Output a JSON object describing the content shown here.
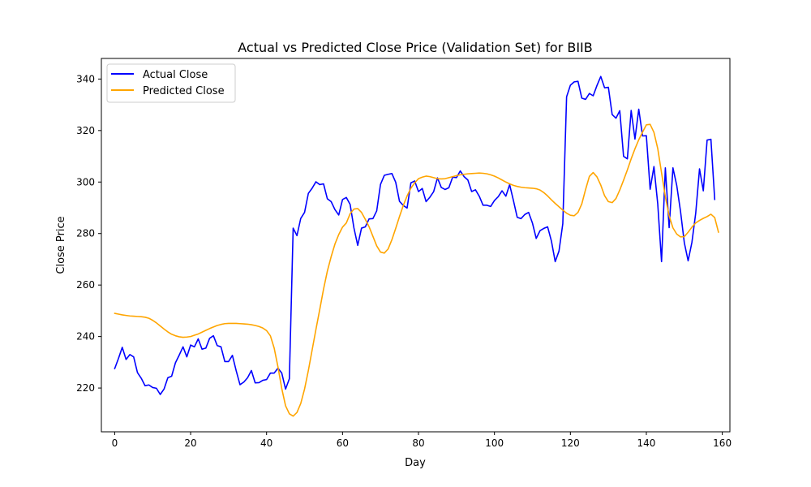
{
  "chart_data": {
    "type": "line",
    "title": "Actual vs Predicted Close Price (Validation Set) for BIIB",
    "xlabel": "Day",
    "ylabel": "Close Price",
    "xlim": [
      -3.5,
      162
    ],
    "ylim": [
      203,
      348
    ],
    "xticks": [
      0,
      20,
      40,
      60,
      80,
      100,
      120,
      140,
      160
    ],
    "yticks": [
      220,
      240,
      260,
      280,
      300,
      320,
      340
    ],
    "grid": false,
    "legend_position": "top-left",
    "series": [
      {
        "name": "Actual Close",
        "color": "#0000ff",
        "values": [
          227.5,
          231.5,
          235.8,
          231.1,
          233.0,
          232.1,
          226.0,
          223.8,
          220.9,
          221.2,
          220.2,
          219.9,
          217.5,
          219.6,
          224.0,
          224.6,
          229.8,
          232.8,
          236.0,
          232.1,
          236.7,
          236.0,
          239.1,
          235.1,
          235.5,
          239.3,
          240.3,
          236.5,
          236.0,
          230.3,
          230.3,
          232.7,
          226.7,
          221.3,
          222.3,
          224.0,
          226.8,
          222.0,
          222.1,
          223.0,
          223.3,
          225.8,
          225.8,
          227.7,
          225.8,
          219.6,
          223.6,
          282.1,
          279.2,
          285.9,
          288.2,
          295.6,
          297.6,
          300.1,
          299.0,
          299.3,
          293.5,
          292.4,
          289.3,
          287.2,
          293.2,
          294.0,
          291.3,
          282.2,
          275.4,
          282.1,
          282.6,
          285.7,
          285.8,
          288.8,
          299.1,
          302.6,
          303.0,
          303.3,
          299.9,
          292.5,
          290.9,
          289.9,
          299.7,
          300.4,
          296.3,
          297.5,
          292.4,
          294.1,
          296.3,
          301.6,
          297.9,
          297.1,
          297.8,
          301.9,
          301.7,
          304.3,
          302.1,
          300.8,
          296.3,
          297.0,
          294.5,
          291.0,
          291.0,
          290.5,
          292.8,
          294.3,
          296.6,
          294.5,
          299.0,
          292.8,
          286.3,
          285.8,
          287.4,
          288.2,
          284.1,
          278.1,
          281.1,
          282.0,
          282.6,
          277.1,
          269.1,
          273.2,
          283.8,
          333.1,
          337.6,
          338.9,
          339.1,
          332.6,
          332.1,
          334.4,
          333.5,
          337.5,
          341.0,
          336.6,
          336.8,
          326.2,
          324.8,
          327.7,
          310.0,
          309.0,
          327.8,
          316.7,
          328.3,
          317.9,
          318.0,
          297.2,
          306.0,
          291.5,
          269.1,
          305.5,
          282.3,
          305.5,
          298.7,
          288.6,
          276.4,
          269.4,
          276.6,
          287.9,
          305.1,
          296.6,
          316.3,
          316.6,
          293.2
        ]
      },
      {
        "name": "Predicted Close",
        "color": "#ffa500",
        "values": [
          249.0,
          248.7,
          248.4,
          248.2,
          248.0,
          247.9,
          247.8,
          247.7,
          247.5,
          247.1,
          246.3,
          245.3,
          244.1,
          242.9,
          241.8,
          240.9,
          240.3,
          239.9,
          239.7,
          239.8,
          240.0,
          240.5,
          241.0,
          241.7,
          242.4,
          243.1,
          243.7,
          244.3,
          244.7,
          245.0,
          245.1,
          245.1,
          245.1,
          245.0,
          244.9,
          244.8,
          244.6,
          244.3,
          243.9,
          243.3,
          242.3,
          240.3,
          235.5,
          228.2,
          219.8,
          213.1,
          210.0,
          209.1,
          210.5,
          214.0,
          219.6,
          226.8,
          234.8,
          242.8,
          250.5,
          258.4,
          265.4,
          271.0,
          275.9,
          279.6,
          282.5,
          284.1,
          287.7,
          289.5,
          289.7,
          288.2,
          285.5,
          282.6,
          278.9,
          275.2,
          272.8,
          272.4,
          274.0,
          277.6,
          282.0,
          286.6,
          290.9,
          294.6,
          297.6,
          299.7,
          301.3,
          301.9,
          302.3,
          302.1,
          301.7,
          301.3,
          301.2,
          301.3,
          301.7,
          302.1,
          302.5,
          302.8,
          303.0,
          303.2,
          303.3,
          303.4,
          303.5,
          303.4,
          303.2,
          302.8,
          302.3,
          301.6,
          300.8,
          300.0,
          299.3,
          298.7,
          298.3,
          298.0,
          297.8,
          297.7,
          297.6,
          297.4,
          296.9,
          295.9,
          294.6,
          293.1,
          291.7,
          290.4,
          289.1,
          287.9,
          287.1,
          286.9,
          288.2,
          291.5,
          297.1,
          302.2,
          303.7,
          302.0,
          298.8,
          294.7,
          292.4,
          292.0,
          293.6,
          296.9,
          300.7,
          304.7,
          309.0,
          312.9,
          316.4,
          319.4,
          322.2,
          322.4,
          319.3,
          313.0,
          303.6,
          294.3,
          286.9,
          282.2,
          279.8,
          278.7,
          278.8,
          280.5,
          282.5,
          284.1,
          285.1,
          285.9,
          286.6,
          287.5,
          286.2,
          280.5
        ]
      }
    ]
  }
}
